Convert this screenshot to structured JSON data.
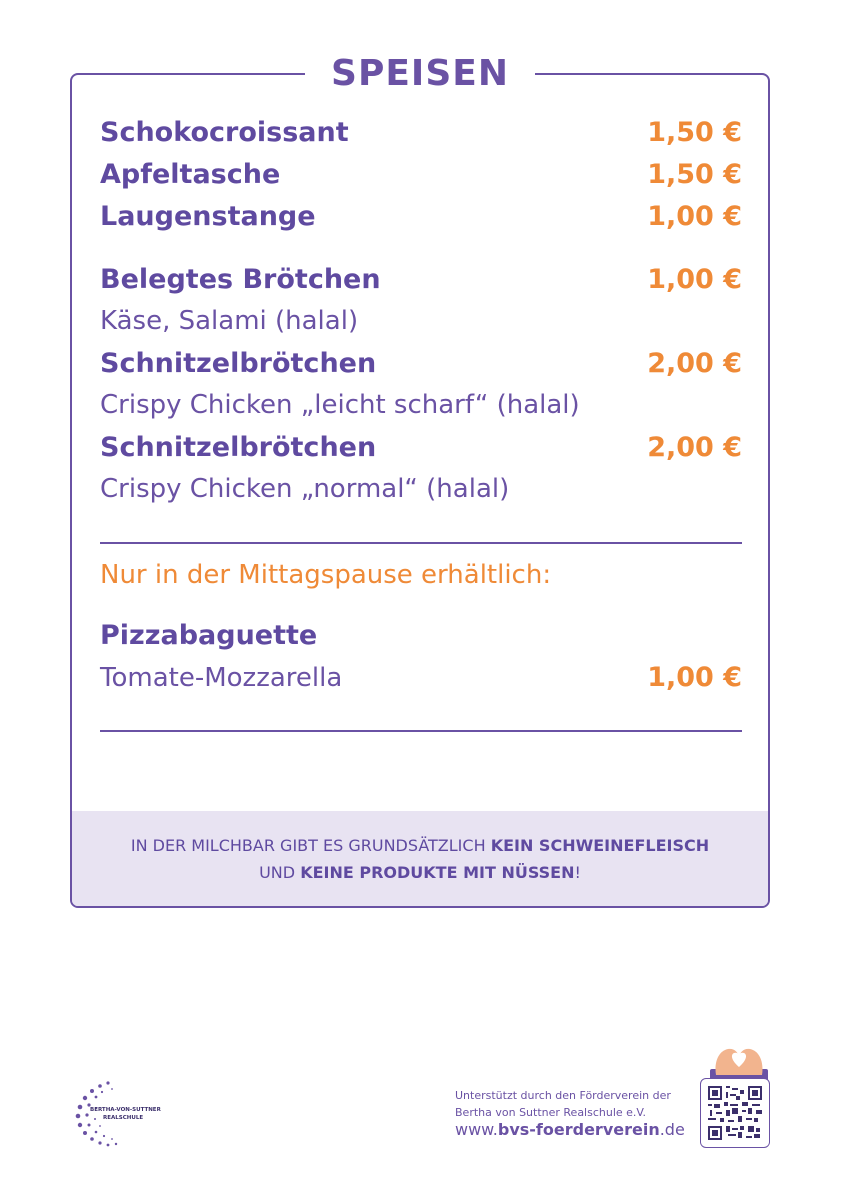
{
  "title": "SPEISEN",
  "items": [
    {
      "name": "Schokocroissant",
      "price": "1,50 €"
    },
    {
      "name": "Apfeltasche",
      "price": "1,50 €"
    },
    {
      "name": "Laugenstange",
      "price": "1,00 €"
    },
    {
      "name": "Belegtes Brötchen",
      "price": "1,00 €",
      "desc": "Käse, Salami (halal)"
    },
    {
      "name": "Schnitzelbrötchen",
      "price": "2,00 €",
      "desc": "Crispy Chicken „leicht scharf“ (halal)"
    },
    {
      "name": "Schnitzelbrötchen",
      "price": "2,00 €",
      "desc": "Crispy Chicken „normal“ (halal)"
    }
  ],
  "lunch_note": "Nur in der Mittagspause erhältlich:",
  "lunch_item": {
    "name": "Pizzabaguette",
    "desc": "Tomate-Mozzarella",
    "price": "1,00 €"
  },
  "notice": {
    "line1_prefix": "IN DER MILCHBAR GIBT ES GRUNDSÄTZLICH ",
    "line1_bold": "KEIN SCHWEINEFLEISCH",
    "line2_prefix": "UND ",
    "line2_bold": "KEINE PRODUKTE MIT NÜSSEN",
    "line2_suffix": "!"
  },
  "logo_text": {
    "line1": "BERTHA-VON-SUTTNER",
    "line2": "REALSCHULE"
  },
  "footer": {
    "credit_line1": "Unterstützt durch den Förderverein der",
    "credit_line2": "Bertha von Suttner Realschule e.V.",
    "url_prefix": "www.",
    "url_bold": "bvs-foerderverein",
    "url_suffix": ".de"
  },
  "icons": [
    "heart-hands-icon",
    "qr-code-icon",
    "school-logo-icon"
  ],
  "colors": {
    "purple": "#6a52a4",
    "orange": "#ef8a37",
    "lavender": "#e8e3f2"
  }
}
